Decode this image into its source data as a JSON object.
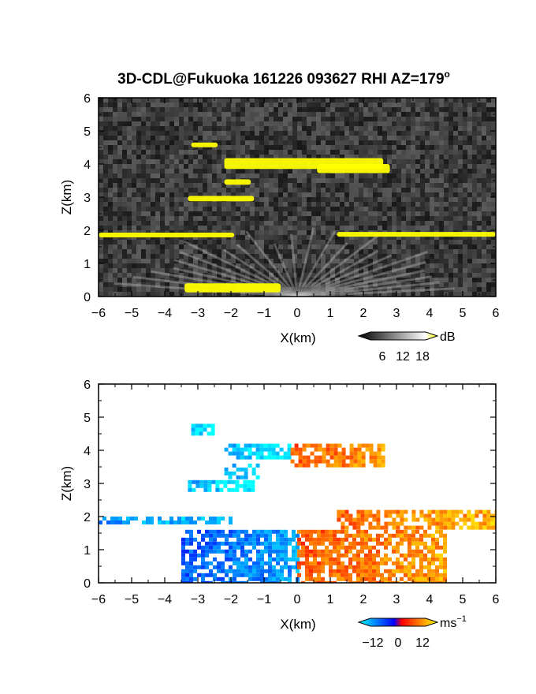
{
  "title": "3D-CDL@Fukuoka 161226 093627 RHI AZ=179",
  "title_suffix": "o",
  "chart_data": [
    {
      "type": "heatmap",
      "panel": "reflectivity",
      "xlabel": "X(km)",
      "ylabel": "Z(km)",
      "xlim": [
        -6,
        6
      ],
      "ylim": [
        0,
        6
      ],
      "xticks": [
        "−6",
        "−5",
        "−4",
        "−3",
        "−2",
        "−1",
        "0",
        "1",
        "2",
        "3",
        "4",
        "5",
        "6"
      ],
      "yticks": [
        "0",
        "1",
        "2",
        "3",
        "4",
        "5",
        "6"
      ],
      "colorbar": {
        "unit": "dB",
        "ticks": [
          "6",
          "12",
          "18"
        ],
        "range": [
          0,
          21
        ],
        "colors": [
          "#000000",
          "#ffffff",
          "#ffff00"
        ]
      },
      "background": "#1e1e1e",
      "highlight_color": "#ffff00",
      "features": [
        {
          "x": [
            -6,
            -1.9
          ],
          "z": [
            1.85,
            1.95
          ]
        },
        {
          "x": [
            1.2,
            6
          ],
          "z": [
            2.0,
            1.75
          ]
        },
        {
          "x": [
            -2.2,
            2.6
          ],
          "z": [
            3.7,
            4.3
          ]
        },
        {
          "x": [
            0.6,
            2.8
          ],
          "z": [
            3.6,
            4.1
          ]
        },
        {
          "x": [
            -2.2,
            -1.4
          ],
          "z": [
            3.3,
            3.6
          ]
        },
        {
          "x": [
            -3.3,
            -1.3
          ],
          "z": [
            2.8,
            3.1
          ]
        },
        {
          "x": [
            -3.2,
            -2.4
          ],
          "z": [
            4.45,
            4.7
          ]
        },
        {
          "x": [
            -3.4,
            -0.5
          ],
          "z": [
            0.0,
            0.5
          ]
        }
      ]
    },
    {
      "type": "heatmap",
      "panel": "doppler velocity",
      "xlabel": "X(km)",
      "ylabel": "Z(km)",
      "xlim": [
        -6,
        6
      ],
      "ylim": [
        0,
        6
      ],
      "xticks": [
        "−6",
        "−5",
        "−4",
        "−3",
        "−2",
        "−1",
        "0",
        "1",
        "2",
        "3",
        "4",
        "5",
        "6"
      ],
      "yticks": [
        "0",
        "1",
        "2",
        "3",
        "4",
        "5",
        "6"
      ],
      "colorbar": {
        "unit": "ms",
        "unit_sup": "−1",
        "ticks": [
          "−12",
          "0",
          "12"
        ],
        "range": [
          -15,
          15
        ],
        "colors": [
          "#00ffff",
          "#0000ff",
          "#ff0000",
          "#ffff00"
        ]
      },
      "features": [
        {
          "x": [
            -6,
            -2.0
          ],
          "z": [
            1.8,
            2.0
          ],
          "v": -11
        },
        {
          "x": [
            1.2,
            6
          ],
          "z": [
            1.7,
            2.2
          ],
          "v": 9
        },
        {
          "x": [
            -2.2,
            -0.2
          ],
          "z": [
            3.8,
            4.2
          ],
          "v": -13
        },
        {
          "x": [
            -0.2,
            2.6
          ],
          "z": [
            3.6,
            4.2
          ],
          "v": 8
        },
        {
          "x": [
            -3.3,
            -1.3
          ],
          "z": [
            2.8,
            3.1
          ],
          "v": -13
        },
        {
          "x": [
            -2.2,
            -1.2
          ],
          "z": [
            3.2,
            3.6
          ],
          "v": -12
        },
        {
          "x": [
            -3.2,
            -2.5
          ],
          "z": [
            4.5,
            4.8
          ],
          "v": -14
        },
        {
          "x": [
            -3.5,
            0
          ],
          "z": [
            0,
            1.6
          ],
          "v": -8
        },
        {
          "x": [
            0,
            4.5
          ],
          "z": [
            0,
            1.6
          ],
          "v": 8
        }
      ]
    }
  ]
}
